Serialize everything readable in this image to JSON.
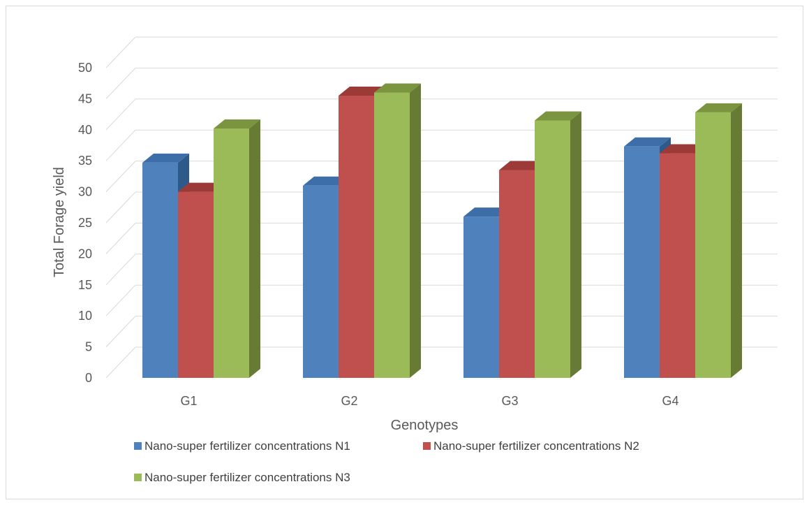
{
  "chart_data": {
    "type": "bar",
    "title": "",
    "xlabel": "Genotypes",
    "ylabel": "Total Forage yield",
    "categories": [
      "G1",
      "G2",
      "G3",
      "G4"
    ],
    "ylim": [
      0,
      50
    ],
    "yticks": [
      0,
      5,
      10,
      15,
      20,
      25,
      30,
      35,
      40,
      45,
      50
    ],
    "grid": true,
    "legend_position": "bottom",
    "series": [
      {
        "name": "Nano-super fertilizer concentrations N1",
        "values": [
          34.7,
          31.0,
          26.0,
          37.3
        ],
        "color": "#4f81bd",
        "side_color": "#2e5a8a",
        "top_color": "#3e6ea8"
      },
      {
        "name": "Nano-super fertilizer concentrations N2",
        "values": [
          30.0,
          45.5,
          33.5,
          36.2
        ],
        "color": "#c0504d",
        "side_color": "#8a2e2b",
        "top_color": "#9c3a37"
      },
      {
        "name": "Nano-super fertilizer concentrations N3",
        "values": [
          40.2,
          46.0,
          41.5,
          42.8
        ],
        "color": "#9bbb59",
        "side_color": "#677b35",
        "top_color": "#7a9440"
      }
    ]
  }
}
